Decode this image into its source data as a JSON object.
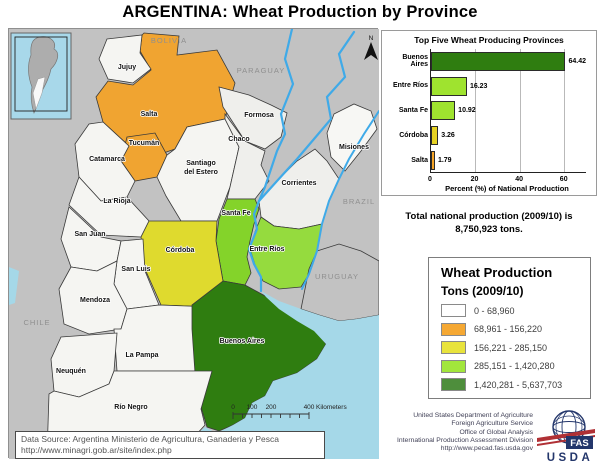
{
  "title": "ARGENTINA: Wheat Production by Province",
  "map": {
    "labels": {
      "bolivia": "BOLIVIA",
      "paraguay": "PARAGUAY",
      "brazil": "BRAZIL",
      "uruguay": "URUGUAY",
      "chile": "CHILE",
      "jujuy": "Jujuy",
      "salta": "Salta",
      "tucuman": "Tucumán",
      "catamarca": "Catamarca",
      "santiago1": "Santiago",
      "santiago2": "del Estero",
      "formosa": "Formosa",
      "chaco": "Chaco",
      "misiones": "Misiones",
      "corrientes": "Corrientes",
      "larioja": "La Rioja",
      "sanjuan": "San Juan",
      "santafe": "Santa Fe",
      "cordoba": "Córdoba",
      "entrerios": "Entre Ríos",
      "sanluis": "San Luis",
      "mendoza": "Mendoza",
      "lapampa": "La Pampa",
      "buenosaires": "Buenos Aires",
      "neuquen": "Neuquén",
      "rionegro": "Río Negro",
      "north": "N"
    },
    "scale": {
      "t0": "0",
      "t1": "100",
      "t2": "200",
      "t3": "400",
      "unit": "Kilometers"
    },
    "data_source": {
      "line1": "Data Source: Argentina Ministerio de Agricultura, Ganaderia y Pesca",
      "line2": "http://www.minagri.gob.ar/site/index.php"
    }
  },
  "chart_data": {
    "type": "bar",
    "orientation": "horizontal",
    "title": "Top Five Wheat Producing Provinces",
    "categories": [
      "Buenos Aires",
      "Entre Ríos",
      "Santa Fe",
      "Córdoba",
      "Salta"
    ],
    "values": [
      64.42,
      16.23,
      10.92,
      3.26,
      1.79
    ],
    "value_labels": [
      "64.42",
      "16.23",
      "10.92",
      "3.26",
      "1.79"
    ],
    "bar_colors": [
      "#2F7D10",
      "#9FE32F",
      "#9FE32F",
      "#E6D223",
      "#F5A426"
    ],
    "xlabel": "Percent (%) of National Production",
    "x_ticks": [
      0,
      20,
      40,
      60
    ],
    "xlim": [
      0,
      70
    ],
    "grid": true,
    "legend_position": "none"
  },
  "total_text": {
    "line1": "Total national production (2009/10) is",
    "line2": "8,750,923 tons."
  },
  "legend": {
    "title_line1": "Wheat Production",
    "title_line2": "Tons (2009/10)",
    "classes": [
      {
        "range": "0 - 68,960",
        "color": "#FFFFFF"
      },
      {
        "range": "68,961 - 156,220",
        "color": "#F5A833"
      },
      {
        "range": "156,221 - 285,150",
        "color": "#E8E33C"
      },
      {
        "range": "285,151 - 1,420,280",
        "color": "#A2E63C"
      },
      {
        "range": "1,420,281 - 5,637,703",
        "color": "#4E8E3C"
      }
    ]
  },
  "footer": {
    "org_lines": [
      "United States Department of Agriculture",
      "Foreign Agriculture Service",
      "Office of Global Analysis",
      "International Production Assessment Division",
      "http://www.pecad.fas.usda.gov"
    ],
    "logo": {
      "fas": "FAS",
      "usda": "USDA"
    }
  }
}
